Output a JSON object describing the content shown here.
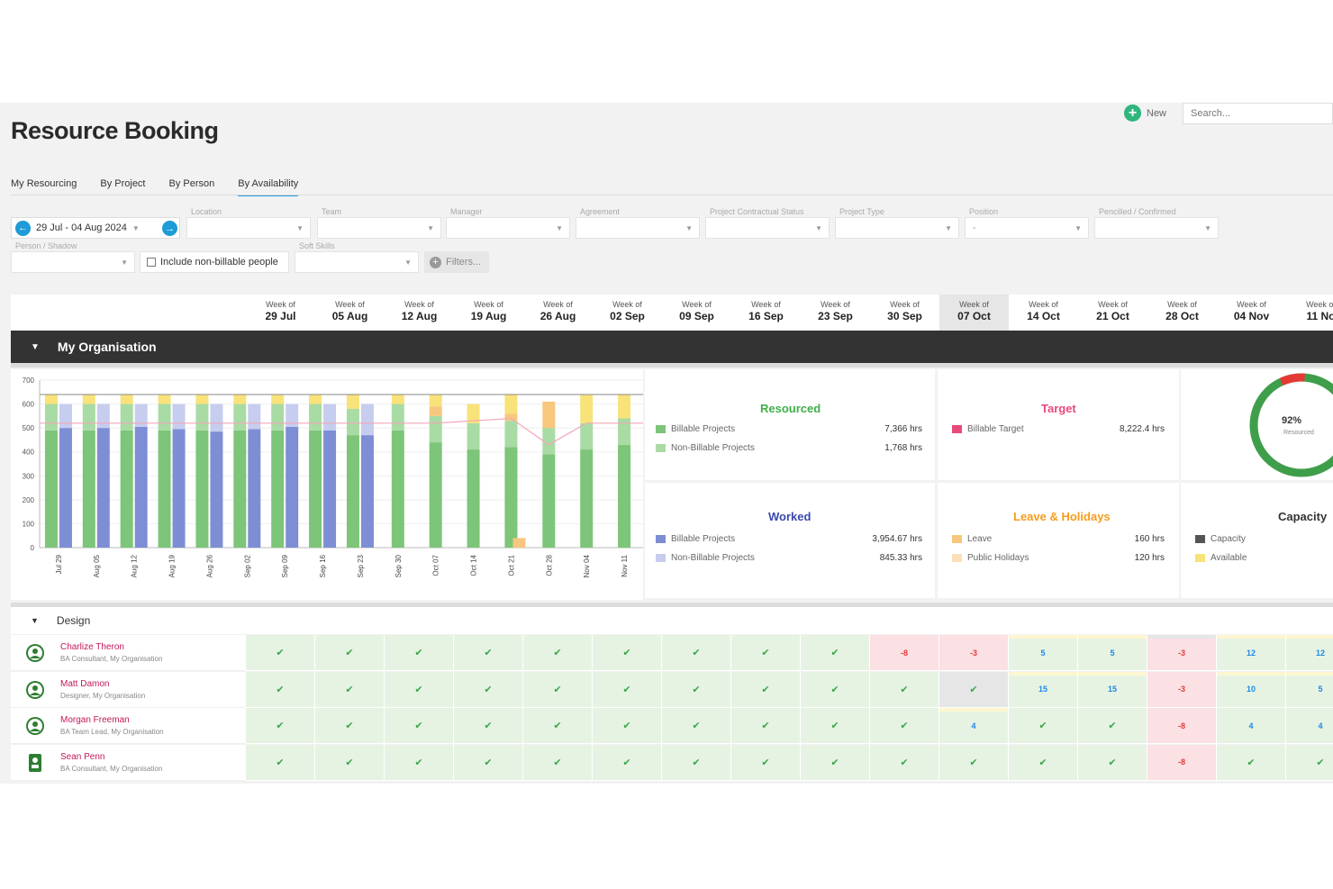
{
  "page": {
    "title": "Resource Booking",
    "new_label": "New",
    "search_placeholder": "Search..."
  },
  "tabs": [
    "My Resourcing",
    "By Project",
    "By Person",
    "By Availability"
  ],
  "active_tab": 3,
  "date_range": "29 Jul - 04 Aug 2024",
  "filters": {
    "location": "Location",
    "team": "Team",
    "manager": "Manager",
    "agreement": "Agreement",
    "contract_status": "Project Contractual Status",
    "project_type": "Project Type",
    "position": "Position",
    "position_value": "-",
    "pencilled": "Pencilled / Confirmed",
    "person_shadow": "Person / Shadow",
    "non_billable": "Include non-billable people",
    "soft_skills": "Soft Skills",
    "filters_btn": "Filters..."
  },
  "weeks": [
    {
      "top": "Week of",
      "date": "29 Jul"
    },
    {
      "top": "Week of",
      "date": "05 Aug"
    },
    {
      "top": "Week of",
      "date": "12 Aug"
    },
    {
      "top": "Week of",
      "date": "19 Aug"
    },
    {
      "top": "Week of",
      "date": "26 Aug"
    },
    {
      "top": "Week of",
      "date": "02 Sep"
    },
    {
      "top": "Week of",
      "date": "09 Sep"
    },
    {
      "top": "Week of",
      "date": "16 Sep"
    },
    {
      "top": "Week of",
      "date": "23 Sep"
    },
    {
      "top": "Week of",
      "date": "30 Sep"
    },
    {
      "top": "Week of",
      "date": "07 Oct"
    },
    {
      "top": "Week of",
      "date": "14 Oct"
    },
    {
      "top": "Week of",
      "date": "21 Oct"
    },
    {
      "top": "Week of",
      "date": "28 Oct"
    },
    {
      "top": "Week of",
      "date": "04 Nov"
    },
    {
      "top": "Week of",
      "date": "11 No"
    }
  ],
  "current_week_index": 10,
  "org_name": "My Organisation",
  "chart_data": {
    "type": "bar",
    "categories": [
      "Jul 29",
      "Aug 05",
      "Aug 12",
      "Aug 19",
      "Aug 26",
      "Sep 02",
      "Sep 09",
      "Sep 16",
      "Sep 23",
      "Sep 30",
      "Oct 07",
      "Oct 14",
      "Oct 21",
      "Oct 28",
      "Nov 04",
      "Nov 11"
    ],
    "ylim": [
      0,
      700
    ],
    "yticks": [
      0,
      100,
      200,
      300,
      400,
      500,
      600,
      700
    ],
    "series": [
      {
        "name": "Billable Projects",
        "color": "#7dc579",
        "values": [
          490,
          490,
          490,
          490,
          490,
          490,
          490,
          490,
          470,
          490,
          440,
          410,
          420,
          390,
          410,
          430
        ]
      },
      {
        "name": "Non-Billable Projects",
        "color": "#a9dba5",
        "values": [
          110,
          110,
          110,
          110,
          110,
          110,
          110,
          110,
          110,
          110,
          110,
          110,
          110,
          110,
          110,
          110
        ]
      },
      {
        "name": "Leave",
        "color": "#f7c77e",
        "values": [
          0,
          0,
          0,
          0,
          0,
          0,
          0,
          0,
          0,
          0,
          40,
          0,
          30,
          110,
          0,
          0
        ]
      },
      {
        "name": "Available",
        "color": "#f8e27a",
        "values": [
          40,
          40,
          40,
          40,
          40,
          40,
          40,
          40,
          60,
          40,
          50,
          80,
          80,
          0,
          120,
          100
        ]
      },
      {
        "name": "Worked Billable Projects",
        "color": "#7d8ed4",
        "values": [
          500,
          500,
          505,
          495,
          485,
          495,
          505,
          490,
          470,
          0,
          0,
          0,
          0,
          0,
          0,
          0
        ]
      },
      {
        "name": "Worked Non-Billable Projects",
        "color": "#c7cdee",
        "values": [
          100,
          100,
          95,
          105,
          115,
          105,
          95,
          110,
          130,
          0,
          0,
          0,
          0,
          0,
          0,
          0
        ]
      }
    ],
    "leave_markers": [
      0,
      0,
      0,
      0,
      0,
      0,
      0,
      0,
      0,
      0,
      0,
      0,
      40,
      0,
      0,
      0
    ],
    "capacity_line": [
      640,
      640,
      640,
      640,
      640,
      640,
      640,
      640,
      640,
      640,
      640,
      640,
      640,
      640,
      640,
      640
    ],
    "target_line": [
      520,
      520,
      520,
      520,
      520,
      520,
      520,
      520,
      520,
      520,
      520,
      530,
      540,
      430,
      520,
      520
    ],
    "grid": true
  },
  "stats": {
    "resourced": {
      "title": "Resourced",
      "rows": [
        {
          "label": "Billable Projects",
          "value": "7,366 hrs",
          "color": "#7dc579"
        },
        {
          "label": "Non-Billable Projects",
          "value": "1,768 hrs",
          "color": "#a9dba5"
        }
      ]
    },
    "target": {
      "title": "Target",
      "rows": [
        {
          "label": "Billable Target",
          "value": "8,222.4 hrs",
          "color": "#e84a7a"
        }
      ]
    },
    "worked": {
      "title": "Worked",
      "rows": [
        {
          "label": "Billable Projects",
          "value": "3,954.67 hrs",
          "color": "#7d8ed4"
        },
        {
          "label": "Non-Billable Projects",
          "value": "845.33 hrs",
          "color": "#c7cdee"
        }
      ]
    },
    "leave": {
      "title": "Leave & Holidays",
      "rows": [
        {
          "label": "Leave",
          "value": "160 hrs",
          "color": "#f7c77e"
        },
        {
          "label": "Public Holidays",
          "value": "120 hrs",
          "color": "#fde0b8"
        }
      ]
    },
    "capacity": {
      "title": "Capacity",
      "rows": [
        {
          "label": "Capacity",
          "color": "#555555"
        },
        {
          "label": "Available",
          "color": "#f8e27a"
        }
      ]
    },
    "donut": {
      "value": 0.92,
      "label": "92%",
      "sub": "Resourced",
      "color": "#3f9e4a",
      "over_color": "#e53935"
    }
  },
  "colors": {
    "resourced": "#3fae49",
    "target": "#e84a7a",
    "worked": "#3949ab",
    "leave": "#f59c1a",
    "capacity": "#333333",
    "accent": "#1f9bd7"
  },
  "group": "Design",
  "people": [
    {
      "name": "Charlize Theron",
      "role": "BA Consultant, My Organisation",
      "avatar": "person",
      "cells": [
        {
          "t": "ok"
        },
        {
          "t": "ok"
        },
        {
          "t": "ok"
        },
        {
          "t": "ok"
        },
        {
          "t": "ok"
        },
        {
          "t": "ok"
        },
        {
          "t": "ok"
        },
        {
          "t": "ok"
        },
        {
          "t": "ok"
        },
        {
          "t": "neg",
          "v": "-8"
        },
        {
          "t": "neg",
          "v": "-3"
        },
        {
          "t": "pos",
          "v": "5",
          "s": "y"
        },
        {
          "t": "pos",
          "v": "5",
          "s": "y"
        },
        {
          "t": "neg",
          "v": "-3",
          "s": "g"
        },
        {
          "t": "pos",
          "v": "12",
          "s": "y"
        },
        {
          "t": "pos",
          "v": "12",
          "s": "y"
        }
      ]
    },
    {
      "name": "Matt Damon",
      "role": "Designer, My Organisation",
      "avatar": "person",
      "cells": [
        {
          "t": "ok"
        },
        {
          "t": "ok"
        },
        {
          "t": "ok"
        },
        {
          "t": "ok"
        },
        {
          "t": "ok"
        },
        {
          "t": "ok"
        },
        {
          "t": "ok"
        },
        {
          "t": "ok"
        },
        {
          "t": "ok"
        },
        {
          "t": "ok"
        },
        {
          "t": "grey"
        },
        {
          "t": "pos",
          "v": "15",
          "s": "y"
        },
        {
          "t": "pos",
          "v": "15",
          "s": "y"
        },
        {
          "t": "neg",
          "v": "-3"
        },
        {
          "t": "pos",
          "v": "10",
          "s": "y"
        },
        {
          "t": "pos",
          "v": "5",
          "s": "y"
        }
      ]
    },
    {
      "name": "Morgan Freeman",
      "role": "BA Team Lead, My Organisation",
      "avatar": "person",
      "cells": [
        {
          "t": "ok"
        },
        {
          "t": "ok"
        },
        {
          "t": "ok"
        },
        {
          "t": "ok"
        },
        {
          "t": "ok"
        },
        {
          "t": "ok"
        },
        {
          "t": "ok"
        },
        {
          "t": "ok"
        },
        {
          "t": "ok"
        },
        {
          "t": "ok"
        },
        {
          "t": "pos",
          "v": "4",
          "s": "y"
        },
        {
          "t": "ok"
        },
        {
          "t": "ok"
        },
        {
          "t": "neg",
          "v": "-8"
        },
        {
          "t": "pos",
          "v": "4"
        },
        {
          "t": "pos",
          "v": "4"
        }
      ]
    },
    {
      "name": "Sean Penn",
      "role": "BA Consultant, My Organisation",
      "avatar": "badge",
      "cells": [
        {
          "t": "ok"
        },
        {
          "t": "ok"
        },
        {
          "t": "ok"
        },
        {
          "t": "ok"
        },
        {
          "t": "ok"
        },
        {
          "t": "ok"
        },
        {
          "t": "ok"
        },
        {
          "t": "ok"
        },
        {
          "t": "ok"
        },
        {
          "t": "ok"
        },
        {
          "t": "ok"
        },
        {
          "t": "ok"
        },
        {
          "t": "ok"
        },
        {
          "t": "neg",
          "v": "-8"
        },
        {
          "t": "ok"
        },
        {
          "t": "ok"
        }
      ]
    }
  ]
}
